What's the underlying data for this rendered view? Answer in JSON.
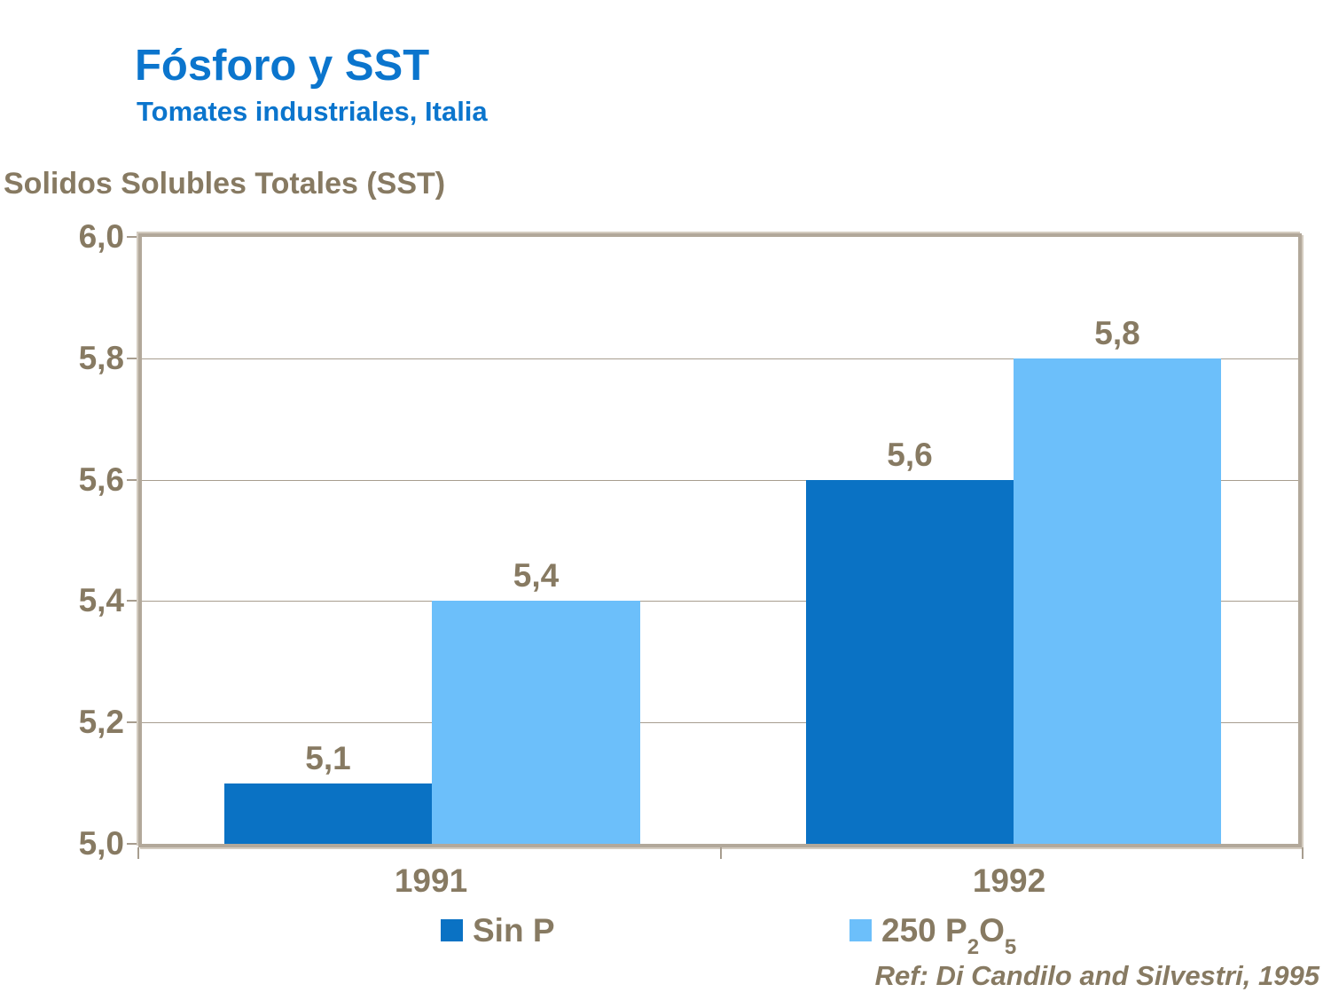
{
  "title": "Fósforo y SST",
  "subtitle": "Tomates industriales,  Italia",
  "y_axis_title": "Solidos Solubles Totales (SST)",
  "reference": "Ref: Di Candilo and Silvestri, 1995",
  "colors": {
    "heading_blue": "#0b75cd",
    "series_sin_p": "#0a72c4",
    "series_p2o5": "#6cbffa",
    "text_brown": "#877a62",
    "axis_border_tan": "#b2a89a",
    "gridline_tan": "#a79d8f"
  },
  "y_ticks": [
    "6,0",
    "5,8",
    "5,6",
    "5,4",
    "5,2",
    "5,0"
  ],
  "x_labels": {
    "c0": "1991",
    "c1": "1992"
  },
  "bar_labels": {
    "s0c0": "5,1",
    "s1c0": "5,4",
    "s0c1": "5,6",
    "s1c1": "5,8"
  },
  "legend": {
    "sin_p_label": "Sin P",
    "p2o5_pre": "250 P",
    "p2o5_sub1": "2",
    "p2o5_o": "O",
    "p2o5_sub2": "5"
  },
  "chart_data": {
    "type": "bar",
    "title": "Fósforo y SST",
    "subtitle": "Tomates industriales, Italia",
    "ylabel": "Solidos Solubles Totales (SST)",
    "categories": [
      "1991",
      "1992"
    ],
    "series": [
      {
        "name": "Sin P",
        "color": "#0a72c4",
        "values": [
          5.1,
          5.6
        ]
      },
      {
        "name": "250 P2O5",
        "color": "#6cbffa",
        "values": [
          5.4,
          5.8
        ]
      }
    ],
    "ylim": [
      5.0,
      6.0
    ],
    "ytick_interval": 0.2,
    "grid": true,
    "data_labels_shown": true,
    "decimal_separator": ",",
    "legend_position": "bottom",
    "reference": "Ref: Di Candilo and Silvestri, 1995"
  }
}
